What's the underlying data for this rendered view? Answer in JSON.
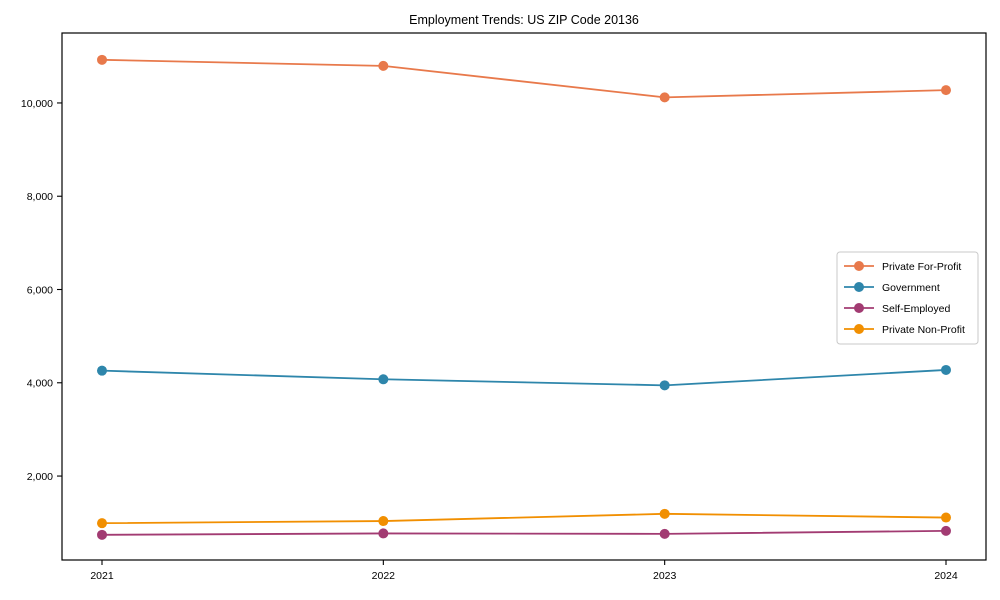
{
  "chart_data": {
    "type": "line",
    "title": "Employment Trends: US ZIP Code 20136",
    "xlabel": "",
    "ylabel": "",
    "x": [
      "2021",
      "2022",
      "2023",
      "2024"
    ],
    "series": [
      {
        "name": "Private For-Profit",
        "color": "#E8794B",
        "values": [
          10925,
          10795,
          10120,
          10275
        ]
      },
      {
        "name": "Government",
        "color": "#2E86AB",
        "values": [
          4260,
          4075,
          3945,
          4275
        ]
      },
      {
        "name": "Self-Employed",
        "color": "#A23B72",
        "values": [
          740,
          770,
          760,
          825
        ]
      },
      {
        "name": "Private Non-Profit",
        "color": "#F18F01",
        "values": [
          990,
          1035,
          1190,
          1110
        ]
      }
    ],
    "ylim": [
      200,
      11500
    ],
    "yticks": [
      2000,
      4000,
      6000,
      8000,
      10000
    ],
    "ytick_labels": [
      "2,000",
      "4,000",
      "6,000",
      "8,000",
      "10,000"
    ],
    "grid": false,
    "legend_position": "center right",
    "marker": "circle",
    "frame": "full-box",
    "axis_color": "#000000",
    "legend_border_color": "#c9c9c9",
    "background_color": "#ffffff"
  }
}
